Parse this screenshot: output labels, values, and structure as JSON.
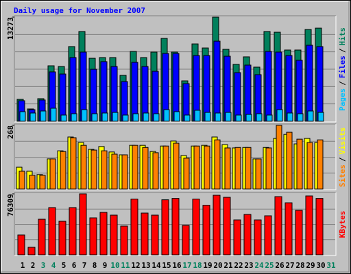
{
  "chart_data": [
    {
      "type": "bar",
      "title": "Daily usage for November 2007",
      "ylim": [
        0,
        13273
      ],
      "yticks": [
        13273
      ],
      "legend_separator": "/",
      "series": [
        {
          "name": "Hits",
          "color": "#00805c",
          "values": [
            2790,
            1570,
            2880,
            7070,
            6980,
            9520,
            11440,
            8030,
            8120,
            8120,
            5850,
            8900,
            8120,
            8820,
            10560,
            8820,
            5150,
            9860,
            9340,
            13273,
            9170,
            7250,
            8210,
            6900,
            11440,
            11350,
            9080,
            9080,
            11700,
            11870,
            null
          ]
        },
        {
          "name": "Files",
          "color": "#0000ff",
          "values": [
            2620,
            1480,
            2710,
            6290,
            6020,
            8120,
            8820,
            6630,
            7600,
            6980,
            5060,
            7510,
            6980,
            6370,
            8640,
            8640,
            4800,
            8380,
            8380,
            10210,
            8290,
            6200,
            7160,
            5940,
            8900,
            8820,
            8380,
            7770,
            9690,
            9520,
            null
          ]
        },
        {
          "name": "Pages",
          "color": "#00c0ff",
          "values": [
            1220,
            1050,
            1310,
            1660,
            790,
            960,
            1480,
            960,
            1050,
            1130,
            790,
            960,
            1050,
            960,
            1480,
            1220,
            790,
            1400,
            1130,
            1050,
            1130,
            790,
            870,
            960,
            790,
            1480,
            1050,
            960,
            1310,
            1130,
            null
          ]
        }
      ]
    },
    {
      "type": "bar",
      "ylim": [
        0,
        268
      ],
      "yticks": [
        268
      ],
      "legend_separator": "/",
      "series": [
        {
          "name": "Visits",
          "color": "#ffff00",
          "values": [
            92,
            75,
            61,
            127,
            161,
            219,
            196,
            167,
            179,
            156,
            144,
            184,
            184,
            158,
            181,
            202,
            141,
            181,
            184,
            219,
            187,
            173,
            175,
            127,
            175,
            213,
            230,
            190,
            213,
            196,
            null
          ]
        },
        {
          "name": "Sites",
          "color": "#ff8000",
          "values": [
            75,
            58,
            58,
            127,
            158,
            216,
            184,
            164,
            161,
            147,
            144,
            184,
            175,
            153,
            181,
            193,
            130,
            181,
            181,
            207,
            173,
            175,
            175,
            127,
            173,
            268,
            239,
            210,
            196,
            207,
            null
          ]
        }
      ]
    },
    {
      "type": "bar",
      "ylim": [
        0,
        76309
      ],
      "yticks": [
        76309
      ],
      "categories": [
        "1",
        "2",
        "3",
        "4",
        "5",
        "6",
        "7",
        "8",
        "9",
        "10",
        "11",
        "12",
        "13",
        "14",
        "15",
        "16",
        "17",
        "18",
        "19",
        "20",
        "21",
        "22",
        "23",
        "24",
        "25",
        "26",
        "27",
        "28",
        "29",
        "30",
        "31"
      ],
      "label_colors": [
        "#000000",
        "#000000",
        "#00805c",
        "#00805c",
        "#000000",
        "#000000",
        "#000000",
        "#000000",
        "#000000",
        "#00805c",
        "#00805c",
        "#000000",
        "#000000",
        "#000000",
        "#000000",
        "#000000",
        "#00805c",
        "#00805c",
        "#000000",
        "#000000",
        "#000000",
        "#000000",
        "#000000",
        "#00805c",
        "#00805c",
        "#000000",
        "#000000",
        "#000000",
        "#000000",
        "#000000",
        "#00805c"
      ],
      "series": [
        {
          "name": "KBytes",
          "color": "#ff0000",
          "values": [
            24850,
            9430,
            44560,
            59130,
            42000,
            59130,
            76309,
            46270,
            53130,
            49700,
            36000,
            69760,
            52270,
            49700,
            68900,
            70620,
            36850,
            69760,
            62040,
            74570,
            72000,
            43700,
            50560,
            43700,
            48850,
            72850,
            65130,
            55700,
            73710,
            70620,
            null
          ]
        }
      ]
    }
  ]
}
